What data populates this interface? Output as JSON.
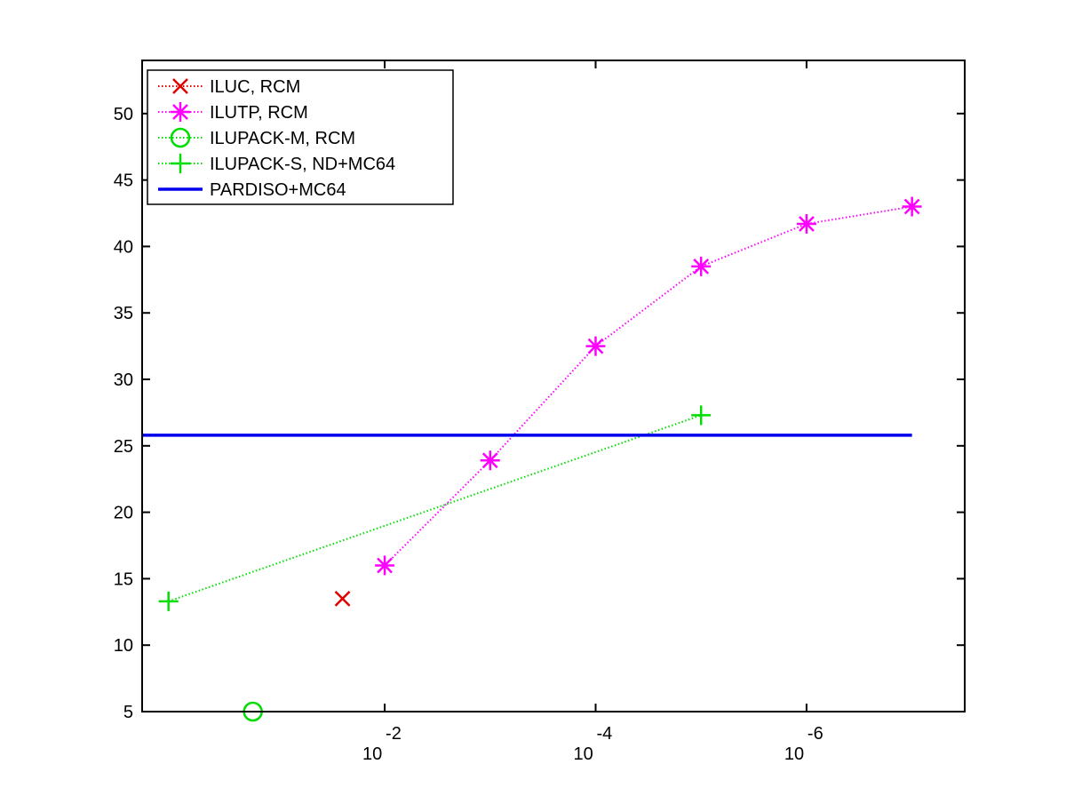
{
  "chart_data": {
    "type": "line",
    "title": "",
    "xlabel": "",
    "ylabel": "",
    "xscale": "log",
    "x_reversed": true,
    "xlim_exp": [
      0.3,
      -7.5
    ],
    "ylim": [
      5,
      54
    ],
    "grid": false,
    "legend_position": "top-left",
    "x_ticks": [
      {
        "exp": -2,
        "base": "10",
        "sup": "-2"
      },
      {
        "exp": -4,
        "base": "10",
        "sup": "-4"
      },
      {
        "exp": -6,
        "base": "10",
        "sup": "-6"
      }
    ],
    "y_ticks": [
      5,
      10,
      15,
      20,
      25,
      30,
      35,
      40,
      45,
      50
    ],
    "series": [
      {
        "name": "ILUC, RCM",
        "color": "#e00000",
        "marker": "x",
        "line": "dotted",
        "points": [
          {
            "exp": -1.6,
            "y": 13.5
          }
        ]
      },
      {
        "name": "ILUTP, RCM",
        "color": "#ff00ff",
        "marker": "asterisk",
        "line": "dotted",
        "points": [
          {
            "exp": -2,
            "y": 16
          },
          {
            "exp": -3,
            "y": 23.9
          },
          {
            "exp": -4,
            "y": 32.5
          },
          {
            "exp": -5,
            "y": 38.5
          },
          {
            "exp": -6,
            "y": 41.7
          },
          {
            "exp": -7,
            "y": 43
          }
        ]
      },
      {
        "name": "ILUPACK-M, RCM",
        "color": "#00dd00",
        "marker": "circle",
        "line": "dotted",
        "points": [
          {
            "exp": -0.75,
            "y": 5
          }
        ]
      },
      {
        "name": "ILUPACK-S, ND+MC64",
        "color": "#00dd00",
        "marker": "plus",
        "line": "dotted",
        "points": [
          {
            "exp": 0.05,
            "y": 13.3
          },
          {
            "exp": -5,
            "y": 27.3
          }
        ]
      },
      {
        "name": "PARDISO+MC64",
        "color": "#0000ee",
        "marker": "none",
        "line": "solid",
        "points": [
          {
            "exp": 0.3,
            "y": 25.8
          },
          {
            "exp": -7,
            "y": 25.8
          }
        ]
      }
    ]
  }
}
